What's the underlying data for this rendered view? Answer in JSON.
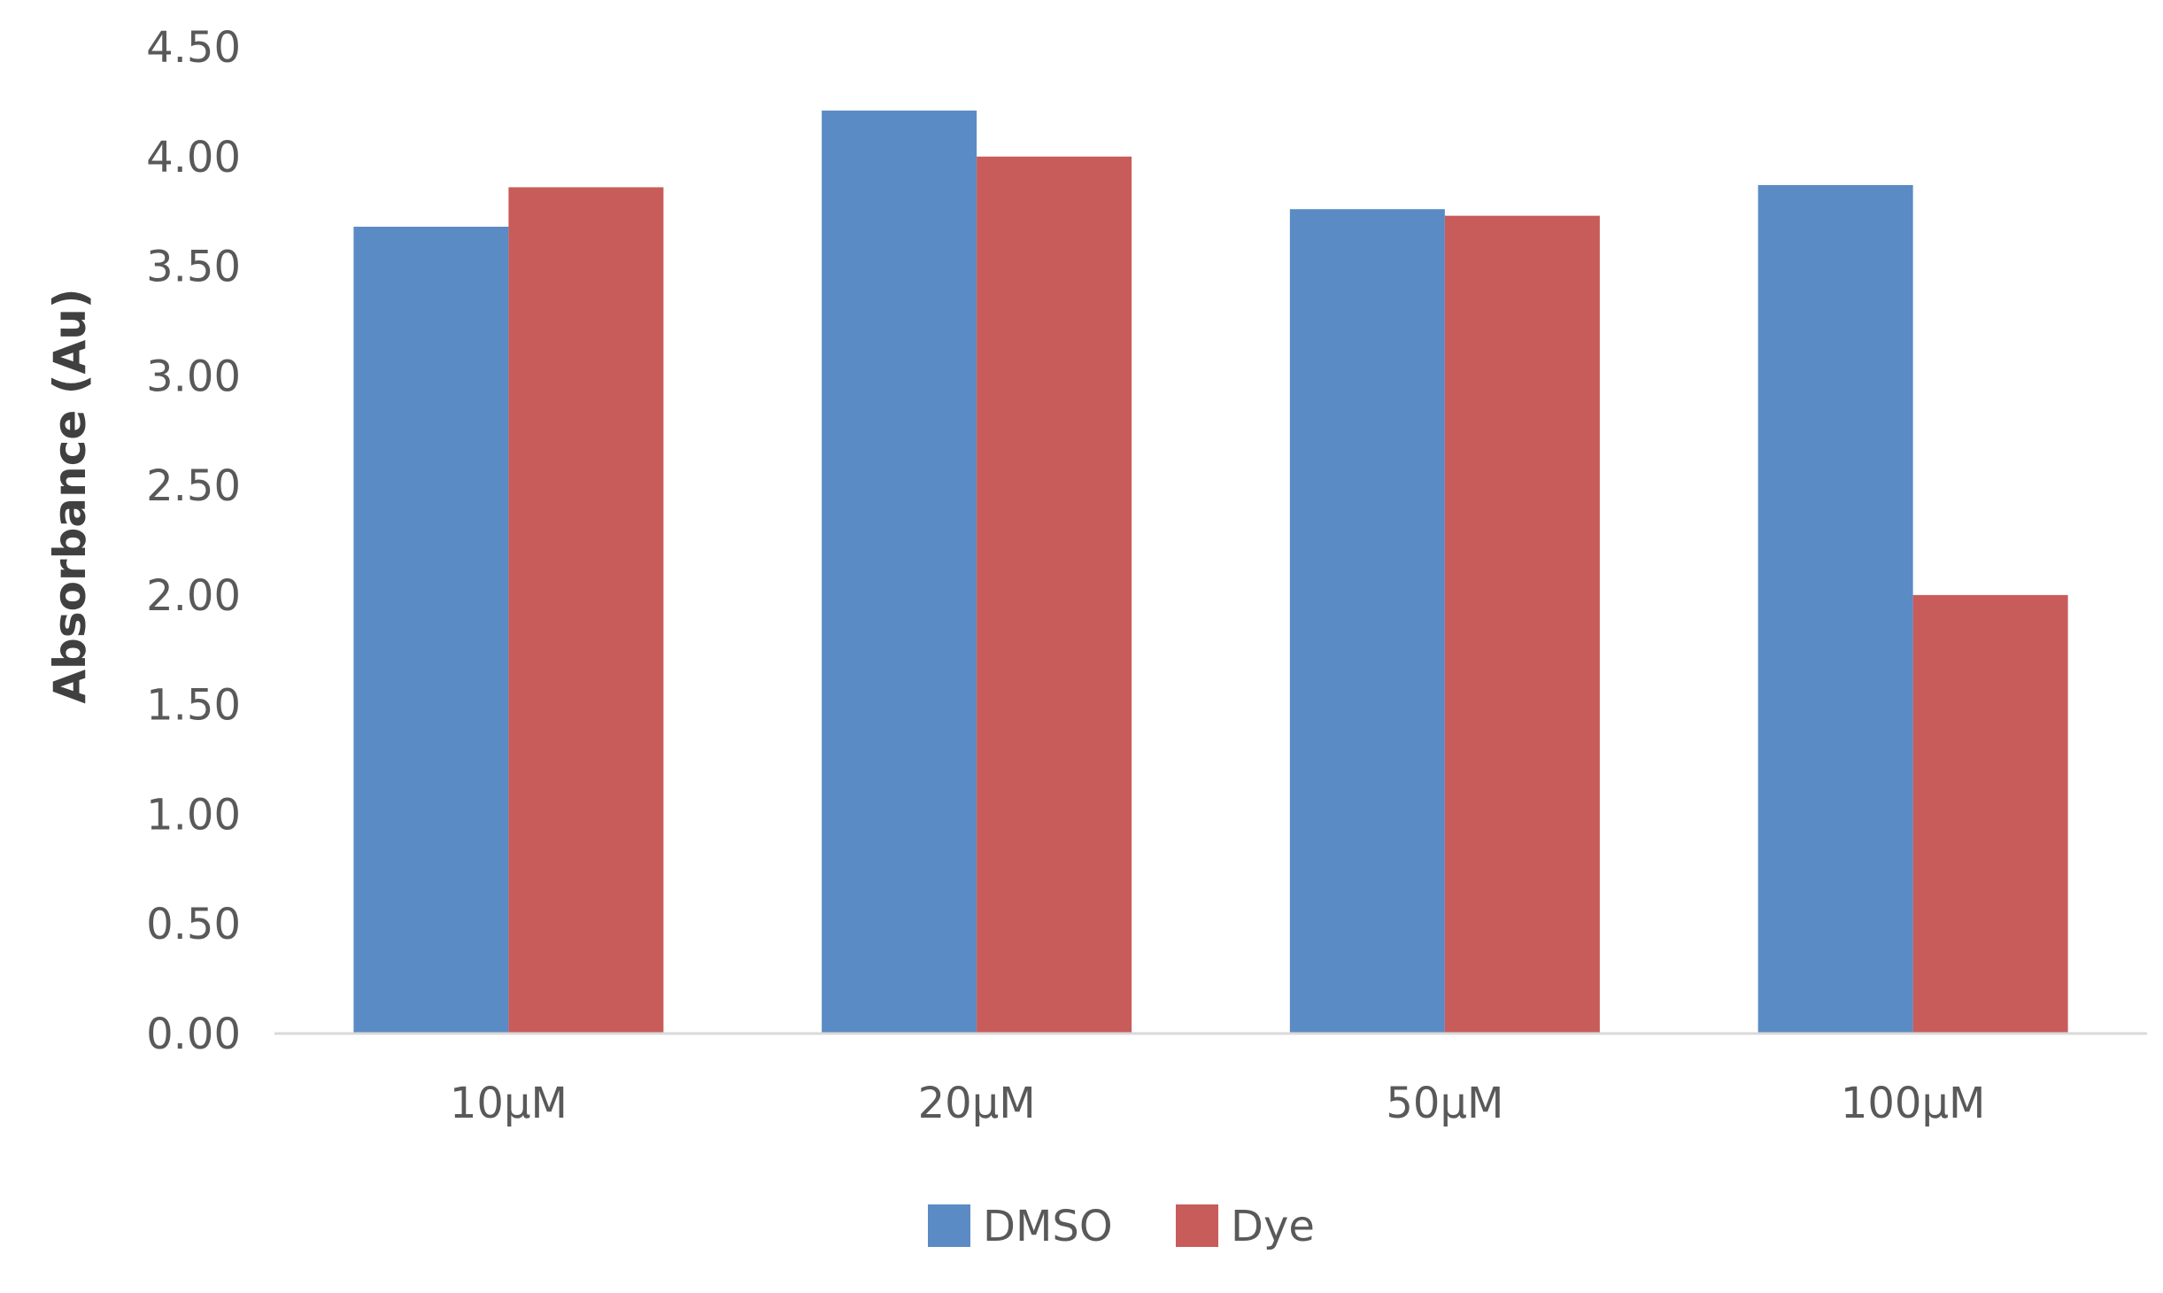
{
  "chart_data": {
    "type": "bar",
    "title": "",
    "xlabel": "",
    "ylabel": "Absorbance (Au)",
    "categories": [
      "10µM",
      "20µM",
      "50µM",
      "100µM"
    ],
    "series": [
      {
        "name": "DMSO",
        "color": "#5b8bc4",
        "values": [
          3.68,
          4.21,
          3.76,
          3.87
        ]
      },
      {
        "name": "Dye",
        "color": "#c85c5a",
        "values": [
          3.86,
          4.0,
          3.73,
          2.0
        ]
      }
    ],
    "ylim": [
      0,
      4.5
    ],
    "yticks": [
      "0.00",
      "0.50",
      "1.00",
      "1.50",
      "2.00",
      "2.50",
      "3.00",
      "3.50",
      "4.00",
      "4.50"
    ],
    "grid": false,
    "legend_position": "bottom"
  }
}
